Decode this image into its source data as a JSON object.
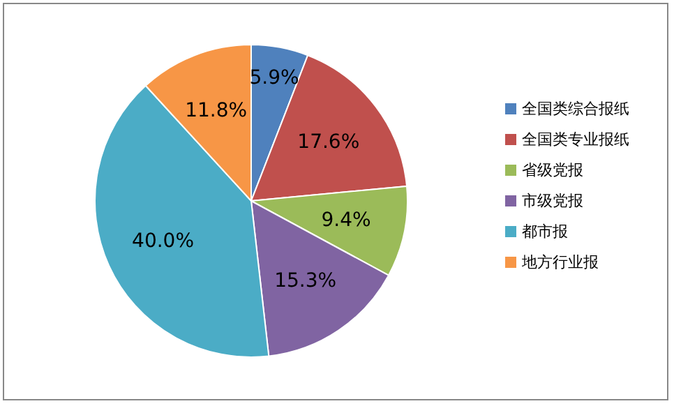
{
  "chart_data": {
    "type": "pie",
    "categories": [
      "全国类综合报纸",
      "全国类专业报纸",
      "省级党报",
      "市级党报",
      "都市报",
      "地方行业报"
    ],
    "values": [
      5.9,
      17.6,
      9.4,
      15.3,
      40.0,
      11.8
    ],
    "colors": [
      "#4f81bd",
      "#c0504d",
      "#9bbb59",
      "#8064a2",
      "#4bacc6",
      "#f79646"
    ],
    "value_labels": [
      "5.9%",
      "17.6%",
      "9.4%",
      "15.3%",
      "40.0%",
      "11.8%"
    ],
    "legend": "right"
  }
}
